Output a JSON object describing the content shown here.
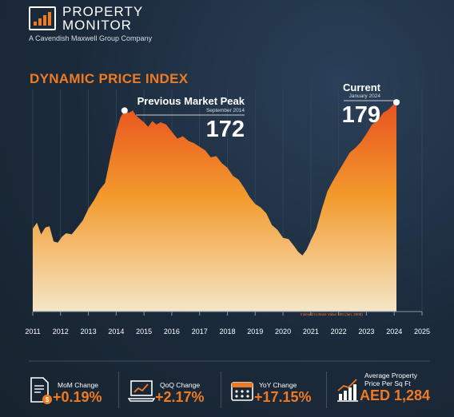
{
  "brand": {
    "name_line1": "PROPERTY",
    "name_line2": "MONITOR",
    "tagline": "A Cavendish Maxwell Group Company"
  },
  "chart_data": {
    "type": "area",
    "title": "DYNAMIC PRICE INDEX",
    "xlim": [
      2011,
      2025
    ],
    "ylim": [
      0,
      190
    ],
    "x_ticks": [
      "2011",
      "2012",
      "2013",
      "2014",
      "2015",
      "2016",
      "2017",
      "2018",
      "2019",
      "2020",
      "2021",
      "2022",
      "2023",
      "2024",
      "2025"
    ],
    "x": [
      2011.0,
      2011.15,
      2011.3,
      2011.45,
      2011.6,
      2011.75,
      2011.9,
      2012.05,
      2012.2,
      2012.4,
      2012.6,
      2012.8,
      2013.0,
      2013.2,
      2013.4,
      2013.6,
      2013.8,
      2014.0,
      2014.15,
      2014.3,
      2014.45,
      2014.6,
      2014.7,
      2014.85,
      2015.0,
      2015.15,
      2015.3,
      2015.45,
      2015.6,
      2015.8,
      2016.0,
      2016.2,
      2016.4,
      2016.6,
      2016.8,
      2017.0,
      2017.2,
      2017.4,
      2017.6,
      2017.8,
      2018.0,
      2018.2,
      2018.4,
      2018.6,
      2018.8,
      2019.0,
      2019.2,
      2019.4,
      2019.6,
      2019.8,
      2020.0,
      2020.2,
      2020.4,
      2020.55,
      2020.7,
      2020.85,
      2021.0,
      2021.2,
      2021.4,
      2021.6,
      2021.8,
      2022.0,
      2022.2,
      2022.4,
      2022.6,
      2022.8,
      2023.0,
      2023.2,
      2023.4,
      2023.6,
      2023.8,
      2024.0,
      2024.08
    ],
    "values": [
      71,
      76,
      66,
      72,
      73,
      60,
      59,
      64,
      67,
      66,
      72,
      78,
      88,
      95,
      104,
      110,
      133,
      154,
      166,
      172,
      170,
      172,
      168,
      165,
      162,
      158,
      163,
      160,
      162,
      160,
      154,
      148,
      150,
      146,
      144,
      141,
      138,
      132,
      133,
      127,
      123,
      116,
      113,
      106,
      98,
      92,
      89,
      84,
      74,
      70,
      63,
      62,
      56,
      51,
      48,
      53,
      61,
      71,
      88,
      103,
      112,
      120,
      128,
      136,
      140,
      145,
      152,
      160,
      163,
      170,
      173,
      178,
      179
    ],
    "annotations": [
      {
        "title": "Previous Market Peak",
        "date": "September 2014",
        "value": "172"
      },
      {
        "title": "Current",
        "date": "January 2024",
        "value": "179"
      }
    ],
    "note": "Indexed to Base Value 100 (Jan. 2008)",
    "grid": true
  },
  "stats": [
    {
      "label": "MoM Change",
      "value": "+0.19%",
      "icon": "document-dollar-icon"
    },
    {
      "label": "QoQ Change",
      "value": "+2.17%",
      "icon": "laptop-chart-icon"
    },
    {
      "label": "YoY Change",
      "value": "+17.15%",
      "icon": "calendar-icon"
    },
    {
      "label_line1": "Average Property",
      "label_line2": "Price Per Sq Ft",
      "value": "AED 1,284",
      "icon": "bar-chart-icon"
    }
  ],
  "colors": {
    "accent": "#f07a22",
    "background": "#1b2a3b"
  }
}
